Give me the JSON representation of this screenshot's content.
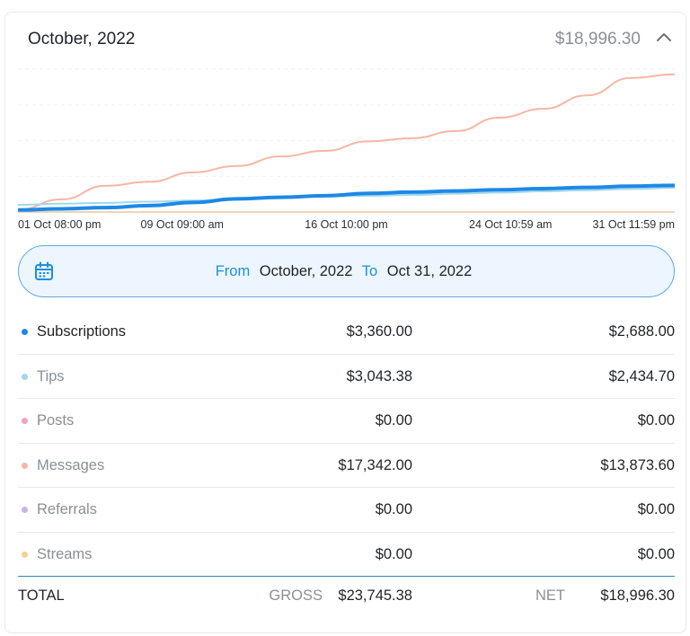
{
  "header": {
    "title": "October, 2022",
    "total": "$18,996.30"
  },
  "chart_data": {
    "type": "line",
    "x_labels": [
      "01 Oct 08:00 pm",
      "09 Oct 09:00 am",
      "16 Oct 10:00 pm",
      "24 Oct 10:59 am",
      "31 Oct 11:59 pm"
    ],
    "x": [
      1,
      3,
      5,
      7,
      9,
      11,
      13,
      15,
      17,
      19,
      21,
      23,
      25,
      27,
      29,
      31
    ],
    "ylim": [
      0,
      18000
    ],
    "grid": true,
    "legend": "none",
    "series": [
      {
        "color": "#f7b6a5",
        "width": 2,
        "values": [
          300,
          1600,
          3300,
          3800,
          5000,
          5800,
          7000,
          7700,
          8900,
          9300,
          10200,
          11900,
          13000,
          14700,
          16900,
          17342
        ]
      },
      {
        "color": "#9fd8ea",
        "width": 2,
        "values": [
          900,
          1050,
          1150,
          1300,
          1450,
          1700,
          1850,
          1950,
          2050,
          2150,
          2300,
          2450,
          2600,
          2750,
          2900,
          3043
        ]
      },
      {
        "color": "#1e88e5",
        "width": 4,
        "values": [
          250,
          400,
          550,
          800,
          1200,
          1650,
          1850,
          2050,
          2350,
          2500,
          2650,
          2800,
          2950,
          3100,
          3250,
          3360
        ]
      },
      {
        "color": "#e8c7a0",
        "width": 1.5,
        "values": [
          0,
          0,
          0,
          0,
          0,
          0,
          0,
          0,
          0,
          0,
          0,
          0,
          0,
          0,
          0,
          0
        ]
      }
    ]
  },
  "range": {
    "from_label": "From",
    "from_value": "October, 2022",
    "to_label": "To",
    "to_value": "Oct 31, 2022"
  },
  "rows": [
    {
      "label": "Subscriptions",
      "gross": "$3,360.00",
      "net": "$2,688.00",
      "color": "#1e88e5"
    },
    {
      "label": "Tips",
      "gross": "$3,043.38",
      "net": "$2,434.70",
      "color": "#9fd8ea"
    },
    {
      "label": "Posts",
      "gross": "$0.00",
      "net": "$0.00",
      "color": "#f4a0c0"
    },
    {
      "label": "Messages",
      "gross": "$17,342.00",
      "net": "$13,873.60",
      "color": "#f7b6a5"
    },
    {
      "label": "Referrals",
      "gross": "$0.00",
      "net": "$0.00",
      "color": "#c4b5e8"
    },
    {
      "label": "Streams",
      "gross": "$0.00",
      "net": "$0.00",
      "color": "#f7cf8f"
    }
  ],
  "totals": {
    "label": "TOTAL",
    "gross_label": "GROSS",
    "gross": "$23,745.38",
    "net_label": "NET",
    "net": "$18,996.30"
  }
}
